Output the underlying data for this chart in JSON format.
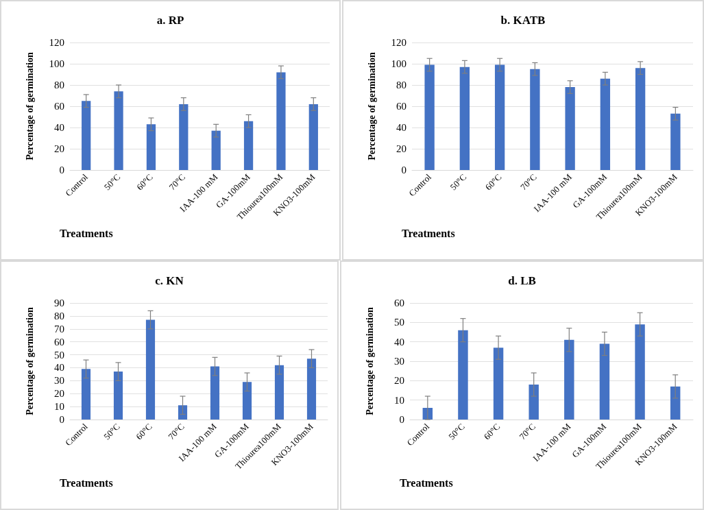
{
  "chart_data": [
    {
      "type": "bar",
      "title": "a. RP",
      "xlabel": "Treatments",
      "ylabel": "Percentage of germination",
      "categories": [
        "Control",
        "50°C",
        "60°C",
        "70°C",
        "IAA-100 mM",
        "GA-100mM",
        "Thiourea100mM",
        "KNO3-100mM"
      ],
      "values": [
        65,
        74,
        43,
        62,
        37,
        46,
        92,
        62
      ],
      "errors": [
        6,
        6,
        6,
        6,
        6,
        6,
        6,
        6
      ],
      "color": "#4472c4",
      "ylim": [
        0,
        120
      ],
      "yticks": [
        0,
        20,
        40,
        60,
        80,
        100,
        120
      ],
      "grid": "y"
    },
    {
      "type": "bar",
      "title": "b. KATB",
      "xlabel": "Treatments",
      "ylabel": "Percentage of germination",
      "categories": [
        "Control",
        "50°C",
        "60°C",
        "70°C",
        "IAA-100 mM",
        "GA-100mM",
        "Thiourea100mM",
        "KNO3-100mM"
      ],
      "values": [
        99,
        97,
        99,
        95,
        78,
        86,
        96,
        53
      ],
      "errors": [
        6,
        6,
        6,
        6,
        6,
        6,
        6,
        6
      ],
      "color": "#4472c4",
      "ylim": [
        0,
        120
      ],
      "yticks": [
        0,
        20,
        40,
        60,
        80,
        100,
        120
      ],
      "grid": "y"
    },
    {
      "type": "bar",
      "title": "c. KN",
      "xlabel": "Treatments",
      "ylabel": "Percentage of germination",
      "categories": [
        "Control",
        "50°C",
        "60°C",
        "70°C",
        "IAA-100 mM",
        "GA-100mM",
        "Thiourea100mM",
        "KNO3-100mM"
      ],
      "values": [
        39,
        37,
        77,
        11,
        41,
        29,
        42,
        47
      ],
      "errors": [
        7,
        7,
        7,
        7,
        7,
        7,
        7,
        7
      ],
      "color": "#4472c4",
      "ylim": [
        0,
        90
      ],
      "yticks": [
        0,
        10,
        20,
        30,
        40,
        50,
        60,
        70,
        80,
        90
      ],
      "grid": "y"
    },
    {
      "type": "bar",
      "title": "d. LB",
      "xlabel": "Treatments",
      "ylabel": "Percentage of germination",
      "categories": [
        "Control",
        "50°C",
        "60°C",
        "70°C",
        "IAA-100 mM",
        "GA-100mM",
        "Thiourea100mM",
        "KNO3-100mM"
      ],
      "values": [
        6,
        46,
        37,
        18,
        41,
        39,
        49,
        17
      ],
      "errors": [
        6,
        6,
        6,
        6,
        6,
        6,
        6,
        6
      ],
      "color": "#4472c4",
      "ylim": [
        0,
        60
      ],
      "yticks": [
        0,
        10,
        20,
        30,
        40,
        50,
        60
      ],
      "grid": "y"
    }
  ]
}
